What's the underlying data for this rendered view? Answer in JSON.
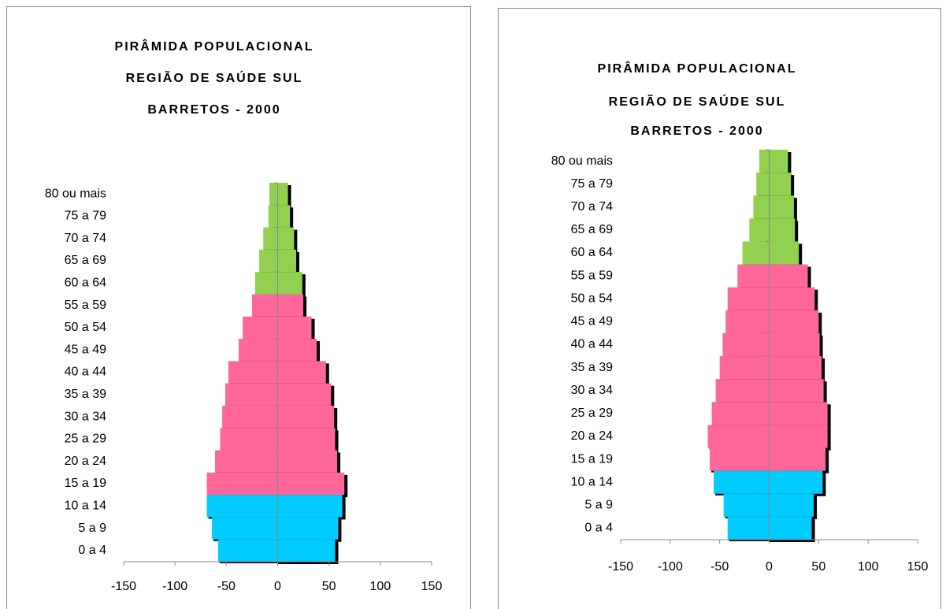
{
  "chart_data": [
    {
      "type": "bar",
      "orientation": "horizontal",
      "title": [
        "PIRÂMIDA POPULACIONAL",
        "REGIÃO DE SAÚDE SUL",
        "BARRETOS - 2000"
      ],
      "categories": [
        "0 a 4",
        "5 a 9",
        "10 a 14",
        "15 a 19",
        "20 a 24",
        "25 a 29",
        "30 a 34",
        "35 a 39",
        "40 a 44",
        "45 a 49",
        "50 a 54",
        "55 a 59",
        "60 a 64",
        "65 a 69",
        "70 a 74",
        "75 a 79",
        "80 ou mais"
      ],
      "colors": [
        "#00ccff",
        "#00ccff",
        "#00ccff",
        "#ff6699",
        "#ff6699",
        "#ff6699",
        "#ff6699",
        "#ff6699",
        "#ff6699",
        "#ff6699",
        "#ff6699",
        "#ff6699",
        "#92d050",
        "#92d050",
        "#92d050",
        "#92d050",
        "#92d050"
      ],
      "series": [
        {
          "values": [
            -58,
            -64,
            -69,
            -69,
            -61,
            -56,
            -54,
            -51,
            -48,
            -38,
            -34,
            -25,
            -22,
            -18,
            -14,
            -9,
            -8
          ]
        },
        {
          "values": [
            56,
            59,
            63,
            65,
            58,
            56,
            55,
            52,
            47,
            38,
            33,
            25,
            24,
            18,
            16,
            12,
            10
          ]
        }
      ],
      "xlim": [
        -150,
        150
      ],
      "xticks": [
        -150,
        -100,
        -50,
        0,
        50,
        100,
        150
      ]
    },
    {
      "type": "bar",
      "orientation": "horizontal",
      "title": [
        "PIRÂMIDA POPULACIONAL",
        "REGIÃO DE SAÚDE SUL",
        "BARRETOS - 2000"
      ],
      "categories": [
        "0 a 4",
        "5 a 9",
        "10 a 14",
        "15 a 19",
        "20 a 24",
        "25 a 29",
        "30 a 34",
        "35 a 39",
        "40 a 44",
        "45 a 49",
        "50 a 54",
        "55 a 59",
        "60 a 64",
        "65 a 69",
        "70 a 74",
        "75 a 79",
        "80 ou mais"
      ],
      "colors": [
        "#00ccff",
        "#00ccff",
        "#00ccff",
        "#ff6699",
        "#ff6699",
        "#ff6699",
        "#ff6699",
        "#ff6699",
        "#ff6699",
        "#ff6699",
        "#ff6699",
        "#ff6699",
        "#92d050",
        "#92d050",
        "#92d050",
        "#92d050",
        "#92d050"
      ],
      "series": [
        {
          "values": [
            -42,
            -46,
            -56,
            -60,
            -62,
            -58,
            -54,
            -50,
            -47,
            -44,
            -42,
            -32,
            -27,
            -20,
            -16,
            -13,
            -10
          ]
        },
        {
          "values": [
            43,
            45,
            54,
            57,
            59,
            59,
            55,
            53,
            51,
            50,
            46,
            39,
            30,
            26,
            25,
            22,
            19
          ]
        }
      ],
      "xlim": [
        -150,
        150
      ],
      "xticks": [
        -150,
        -100,
        -50,
        0,
        50,
        100,
        150
      ]
    }
  ]
}
